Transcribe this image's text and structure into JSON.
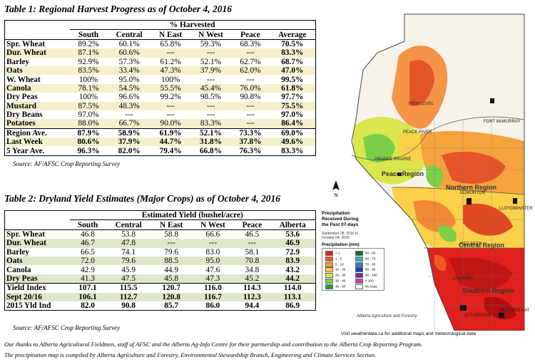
{
  "table1": {
    "title": "Table 1: Regional Harvest Progress as of October 4, 2016",
    "group_header": "% Harvested",
    "columns": [
      "South",
      "Central",
      "N East",
      "N West",
      "Peace",
      "Average"
    ],
    "rows": [
      {
        "label": "Spr. Wheat",
        "values": [
          "89.2%",
          "60.1%",
          "65.8%",
          "59.3%",
          "68.3%",
          "70.5%"
        ]
      },
      {
        "label": "Dur. Wheat",
        "values": [
          "87.1%",
          "60.6%",
          "---",
          "---",
          "---",
          "83.3%"
        ]
      },
      {
        "label": "Barley",
        "values": [
          "92.9%",
          "57.3%",
          "61.2%",
          "52.1%",
          "62.7%",
          "68.7%"
        ]
      },
      {
        "label": "Oats",
        "values": [
          "83.5%",
          "33.4%",
          "47.3%",
          "37.9%",
          "62.0%",
          "47.0%"
        ]
      },
      {
        "label": "W. Wheat",
        "values": [
          "100%",
          "95.0%",
          "100%",
          "---",
          "---",
          "99.5%"
        ]
      },
      {
        "label": "Canola",
        "values": [
          "78.1%",
          "54.5%",
          "55.5%",
          "45.4%",
          "76.0%",
          "61.8%"
        ]
      },
      {
        "label": "Dry Peas",
        "values": [
          "100%",
          "96.6%",
          "99.2%",
          "98.5%",
          "90.8%",
          "97.7%"
        ]
      },
      {
        "label": "Mustard",
        "values": [
          "87.5%",
          "48.3%",
          "---",
          "---",
          "---",
          "75.5%"
        ]
      },
      {
        "label": "Dry Beans",
        "values": [
          "97.0%",
          "---",
          "---",
          "---",
          "---",
          "97.0%"
        ]
      },
      {
        "label": "Potatoes",
        "values": [
          "88.0%",
          "66.7%",
          "90.0%",
          "83.3%",
          "---",
          "86.4%"
        ]
      },
      {
        "label": "Region Ave.",
        "values": [
          "87.9%",
          "58.9%",
          "61.9%",
          "52.1%",
          "73.3%",
          "69.0%"
        ]
      },
      {
        "label": "Last Week",
        "values": [
          "80.6%",
          "37.9%",
          "44.7%",
          "31.8%",
          "37.8%",
          "49.6%"
        ]
      },
      {
        "label": "5 Year Ave.",
        "values": [
          "96.3%",
          "82.0%",
          "79.4%",
          "66.8%",
          "76.3%",
          "83.3%"
        ]
      }
    ],
    "source": "Source: AF/AFSC Crop Reporting Survey"
  },
  "table2": {
    "title": "Table 2: Dryland Yield Estimates (Major Crops) as of October 4, 2016",
    "group_header": "Estimated Yield (bushel/acre)",
    "columns": [
      "South",
      "Central",
      "N East",
      "N West",
      "Peace",
      "Alberta"
    ],
    "rows": [
      {
        "label": "Spr. Wheat",
        "values": [
          "46.8",
          "53.8",
          "58.8",
          "66.6",
          "46.5",
          "53.6"
        ]
      },
      {
        "label": "Dur. Wheat",
        "values": [
          "46.7",
          "47.8",
          "---",
          "---",
          "---",
          "46.9"
        ]
      },
      {
        "label": "Barley",
        "values": [
          "66.5",
          "74.1",
          "79.6",
          "83.0",
          "58.1",
          "72.9"
        ]
      },
      {
        "label": "Oats",
        "values": [
          "72.0",
          "79.6",
          "88.5",
          "95.0",
          "70.8",
          "83.9"
        ]
      },
      {
        "label": "Canola",
        "values": [
          "42.9",
          "45.9",
          "44.9",
          "47.6",
          "34.8",
          "43.2"
        ]
      },
      {
        "label": "Dry Peas",
        "values": [
          "41.3",
          "47.5",
          "45.8",
          "47.3",
          "45.2",
          "44.2"
        ]
      },
      {
        "label": "Yield Index",
        "values": [
          "107.1",
          "115.5",
          "120.7",
          "116.0",
          "114.3",
          "114.0"
        ]
      },
      {
        "label": "Sept 20/16",
        "values": [
          "106.1",
          "112.7",
          "120.8",
          "116.7",
          "112.3",
          "113.1"
        ]
      },
      {
        "label": "2015 Yld Ind",
        "values": [
          "82.0",
          "90.8",
          "85.7",
          "86.0",
          "94.4",
          "86.9"
        ]
      }
    ],
    "source": "Source: AF/AFSC Crop Reporting Survey"
  },
  "footnotes": {
    "line1": "Our thanks to Alberta Agricultural Fieldmen, staff of AFSC and the Alberta Ag-Info Centre for their partnership and contribution to the Alberta Crop Reporting Program.",
    "line2": "The precipitation map is compiled by Alberta Agriculture and Forestry, Environmental Stewardship Branch, Engineering and Climate Services Section."
  },
  "map": {
    "legend_title_l1": "Precipitation",
    "legend_title_l2": "Received During",
    "legend_title_l3": "the Past 07-days",
    "date_range_l1": "September 28, 2016 to",
    "date_range_l2": "October 04, 2016",
    "legend_heading": "Precipitation (mm)",
    "legend": [
      {
        "label": "< 1",
        "color": "#e0201c"
      },
      {
        "label": "1 - 5",
        "color": "#f05a24"
      },
      {
        "label": "5 - 10",
        "color": "#f79a3a"
      },
      {
        "label": "10 - 20",
        "color": "#fbd14b"
      },
      {
        "label": "20 - 30",
        "color": "#d8e84a"
      },
      {
        "label": "30 - 40",
        "color": "#7ccf4a"
      },
      {
        "label": "40 - 50",
        "color": "#2e9a3c"
      },
      {
        "label": "50 - 60",
        "color": "#146b2e"
      },
      {
        "label": "60 - 70",
        "color": "#35b7b0"
      },
      {
        "label": "70 - 80",
        "color": "#2a7fd0"
      },
      {
        "label": "80 - 90",
        "color": "#1d3fa8"
      },
      {
        "label": "90 - 100",
        "color": "#7a2aa8"
      },
      {
        "label": "> 100",
        "color": "#d43ab8"
      },
      {
        "label": "No Data",
        "color": "#ffffff"
      }
    ],
    "regions": {
      "peace": "Peace Region",
      "northern": "Northern Region",
      "central": "Central Region",
      "southern": "Southern Region"
    },
    "cities": [
      "FORT McMURRAY",
      "PEACE RIVER",
      "GRANDE PRAIRIE",
      "EDMONTON",
      "RED DEER",
      "CALGARY",
      "LETHBRIDGE",
      "MEDICINE HAT",
      "LLOYDMINSTER",
      "HIGH LEVEL"
    ],
    "agency": "Alberta Agriculture and Forestry",
    "credit": "Visit weatherdata.ca for additional maps and meteorological data"
  }
}
